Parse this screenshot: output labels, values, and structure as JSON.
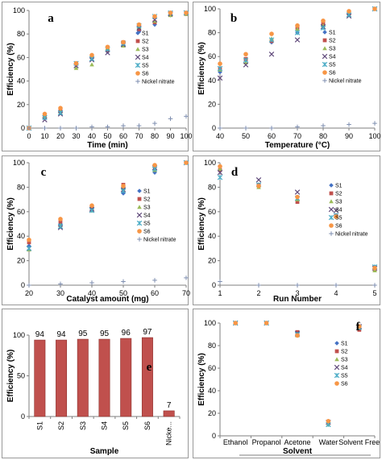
{
  "marker_styles": [
    {
      "shape": "diamond",
      "color": "#4472c4"
    },
    {
      "shape": "square",
      "color": "#c0504d"
    },
    {
      "shape": "triangle",
      "color": "#9bbb59"
    },
    {
      "shape": "x",
      "color": "#604a7b"
    },
    {
      "shape": "asterisk",
      "color": "#4bacc6"
    },
    {
      "shape": "circle",
      "color": "#f79646"
    },
    {
      "shape": "plus",
      "color": "#7f8fb0"
    }
  ],
  "chart_data": [
    {
      "panel": "a",
      "type": "scatter",
      "xlabel": "Time (min)",
      "ylabel": "Efficiency (%)",
      "xlim": [
        0,
        100
      ],
      "ylim": [
        0,
        100
      ],
      "xticks": [
        0,
        10,
        20,
        30,
        40,
        50,
        60,
        70,
        80,
        90,
        100
      ],
      "yticks": [
        0,
        20,
        40,
        60,
        80,
        100
      ],
      "legend": "right",
      "series": [
        {
          "name": "S1",
          "x": [
            0,
            10,
            20,
            30,
            40,
            50,
            60,
            70,
            80,
            90,
            100
          ],
          "y": [
            0,
            10,
            15,
            54,
            60,
            65,
            72,
            82,
            88,
            96,
            97
          ]
        },
        {
          "name": "S2",
          "x": [
            0,
            10,
            20,
            30,
            40,
            50,
            60,
            70,
            80,
            90,
            100
          ],
          "y": [
            0,
            11,
            16,
            55,
            61,
            66,
            73,
            84,
            90,
            97,
            97
          ]
        },
        {
          "name": "S3",
          "x": [
            0,
            10,
            20,
            30,
            40,
            50,
            60,
            70,
            80,
            90,
            100
          ],
          "y": [
            0,
            10,
            14,
            51,
            54,
            68,
            70,
            86,
            91,
            96,
            97
          ]
        },
        {
          "name": "S4",
          "x": [
            0,
            10,
            20,
            30,
            40,
            50,
            60,
            70,
            80,
            90,
            100
          ],
          "y": [
            0,
            7,
            12,
            53,
            58,
            64,
            71,
            85,
            92,
            97,
            98
          ]
        },
        {
          "name": "S5",
          "x": [
            0,
            10,
            20,
            30,
            40,
            50,
            60,
            70,
            80,
            90,
            100
          ],
          "y": [
            0,
            9,
            13,
            55,
            59,
            67,
            72,
            87,
            95,
            98,
            98
          ]
        },
        {
          "name": "S6",
          "x": [
            0,
            10,
            20,
            30,
            40,
            50,
            60,
            70,
            80,
            90,
            100
          ],
          "y": [
            0,
            12,
            17,
            55,
            62,
            69,
            73,
            88,
            95,
            98,
            98
          ]
        },
        {
          "name": "Nickel nitrate",
          "x": [
            0,
            10,
            20,
            30,
            40,
            50,
            60,
            70,
            80,
            90,
            100
          ],
          "y": [
            0,
            0,
            0,
            0,
            1,
            1,
            2,
            2,
            4,
            8,
            10
          ]
        }
      ]
    },
    {
      "panel": "b",
      "type": "scatter",
      "xlabel": "Temperature (°C)",
      "ylabel": "Efficiency (%)",
      "xlim": [
        40,
        100
      ],
      "ylim": [
        0,
        100
      ],
      "xticks": [
        40,
        50,
        60,
        70,
        80,
        90,
        100
      ],
      "yticks": [
        0,
        20,
        40,
        60,
        80,
        100
      ],
      "legend": "right",
      "series": [
        {
          "name": "S1",
          "x": [
            40,
            50,
            60,
            70,
            80,
            90,
            100
          ],
          "y": [
            47,
            57,
            72,
            80,
            87,
            96,
            100
          ]
        },
        {
          "name": "S2",
          "x": [
            40,
            50,
            60,
            70,
            80,
            90,
            100
          ],
          "y": [
            50,
            58,
            73,
            84,
            88,
            96,
            100
          ]
        },
        {
          "name": "S3",
          "x": [
            40,
            50,
            60,
            70,
            80,
            90,
            100
          ],
          "y": [
            49,
            55,
            75,
            83,
            86,
            95,
            100
          ]
        },
        {
          "name": "S4",
          "x": [
            40,
            50,
            60,
            70,
            80,
            90,
            100
          ],
          "y": [
            42,
            53,
            62,
            74,
            85,
            94,
            100
          ]
        },
        {
          "name": "S5",
          "x": [
            40,
            50,
            60,
            70,
            80,
            90,
            100
          ],
          "y": [
            50,
            57,
            74,
            80,
            84,
            95,
            100
          ]
        },
        {
          "name": "S6",
          "x": [
            40,
            50,
            60,
            70,
            80,
            90,
            100
          ],
          "y": [
            54,
            62,
            79,
            86,
            90,
            98,
            100
          ]
        },
        {
          "name": "Nickel nitrate",
          "x": [
            40,
            50,
            60,
            70,
            80,
            90,
            100
          ],
          "y": [
            0,
            0,
            0,
            1,
            2,
            3,
            4
          ]
        }
      ]
    },
    {
      "panel": "c",
      "type": "scatter",
      "xlabel": "Catalyst amount (mg)",
      "ylabel": "Efficiency (%)",
      "xlim": [
        20,
        70
      ],
      "ylim": [
        0,
        100
      ],
      "xticks": [
        20,
        30,
        40,
        50,
        60,
        70
      ],
      "yticks": [
        0,
        20,
        40,
        60,
        80,
        100
      ],
      "legend": "right",
      "series": [
        {
          "name": "S1",
          "x": [
            20,
            30,
            40,
            50,
            60,
            70
          ],
          "y": [
            32,
            50,
            61,
            75,
            92,
            100
          ]
        },
        {
          "name": "S2",
          "x": [
            20,
            30,
            40,
            50,
            60,
            70
          ],
          "y": [
            35,
            52,
            63,
            82,
            97,
            100
          ]
        },
        {
          "name": "S3",
          "x": [
            20,
            30,
            40,
            50,
            60,
            70
          ],
          "y": [
            29,
            49,
            61,
            79,
            94,
            100
          ]
        },
        {
          "name": "S4",
          "x": [
            20,
            30,
            40,
            50,
            60,
            70
          ],
          "y": [
            30,
            47,
            62,
            78,
            96,
            100
          ]
        },
        {
          "name": "S5",
          "x": [
            20,
            30,
            40,
            50,
            60,
            70
          ],
          "y": [
            30,
            48,
            61,
            77,
            95,
            100
          ]
        },
        {
          "name": "S6",
          "x": [
            20,
            30,
            40,
            50,
            60,
            70
          ],
          "y": [
            37,
            54,
            65,
            81,
            98,
            100
          ]
        },
        {
          "name": "Nickel nitrate",
          "x": [
            20,
            30,
            40,
            50,
            60,
            70
          ],
          "y": [
            0,
            1,
            2,
            3,
            4,
            6
          ]
        }
      ]
    },
    {
      "panel": "d",
      "type": "scatter",
      "xlabel": "Run Number",
      "ylabel": "Efficiency (%)",
      "xlim": [
        1,
        5
      ],
      "ylim": [
        0,
        100
      ],
      "xticks": [
        1,
        2,
        3,
        4,
        5
      ],
      "yticks": [
        0,
        20,
        40,
        60,
        80,
        100
      ],
      "legend": "right",
      "series": [
        {
          "name": "S1",
          "x": [
            1,
            2,
            3,
            4,
            5
          ],
          "y": [
            94,
            82,
            69,
            57,
            15
          ]
        },
        {
          "name": "S2",
          "x": [
            1,
            2,
            3,
            4,
            5
          ],
          "y": [
            94,
            82,
            68,
            57,
            13
          ]
        },
        {
          "name": "S3",
          "x": [
            1,
            2,
            3,
            4,
            5
          ],
          "y": [
            95,
            80,
            70,
            56,
            12
          ]
        },
        {
          "name": "S4",
          "x": [
            1,
            2,
            3,
            4,
            5
          ],
          "y": [
            92,
            86,
            76,
            61,
            14
          ]
        },
        {
          "name": "S5",
          "x": [
            1,
            2,
            3,
            4,
            5
          ],
          "y": [
            88,
            82,
            71,
            57,
            15
          ]
        },
        {
          "name": "S6",
          "x": [
            1,
            2,
            3,
            4,
            5
          ],
          "y": [
            97,
            81,
            72,
            56,
            14
          ]
        },
        {
          "name": "Nickel nitrate",
          "x": [
            1,
            2,
            3,
            4,
            5
          ],
          "y": [
            3,
            0,
            0,
            0,
            0
          ]
        }
      ]
    },
    {
      "panel": "e",
      "type": "bar",
      "xlabel": "Sample",
      "ylabel": "Efficiency (%)",
      "ylim": [
        0,
        100
      ],
      "yticks": [
        0,
        50,
        100
      ],
      "bar_color": "#c0504d",
      "categories": [
        "S1",
        "S2",
        "S3",
        "S4",
        "S5",
        "S6",
        "Nicke..."
      ],
      "values": [
        94,
        94,
        95,
        95,
        96,
        97,
        7
      ],
      "data_labels": [
        "94",
        "94",
        "95",
        "95",
        "96",
        "97",
        "7"
      ]
    },
    {
      "panel": "f",
      "type": "scatter",
      "xlabel": "Solvent",
      "ylabel": "Efficiency (%)",
      "ylim": [
        0,
        100
      ],
      "yticks": [
        0,
        20,
        40,
        60,
        80,
        100
      ],
      "categories": [
        "Ethanol",
        "Propanol",
        "Acetone",
        "Water",
        "Solvent Free"
      ],
      "legend": "right",
      "series": [
        {
          "name": "S1",
          "values": [
            100,
            100,
            91,
            11,
            95
          ]
        },
        {
          "name": "S2",
          "values": [
            100,
            100,
            92,
            12,
            94
          ]
        },
        {
          "name": "S3",
          "values": [
            100,
            100,
            89,
            10,
            96
          ]
        },
        {
          "name": "S4",
          "values": [
            100,
            100,
            91,
            12,
            97
          ]
        },
        {
          "name": "S5",
          "values": [
            100,
            100,
            90,
            10,
            96
          ]
        },
        {
          "name": "S6",
          "values": [
            100,
            100,
            89,
            13,
            97
          ]
        }
      ]
    }
  ]
}
